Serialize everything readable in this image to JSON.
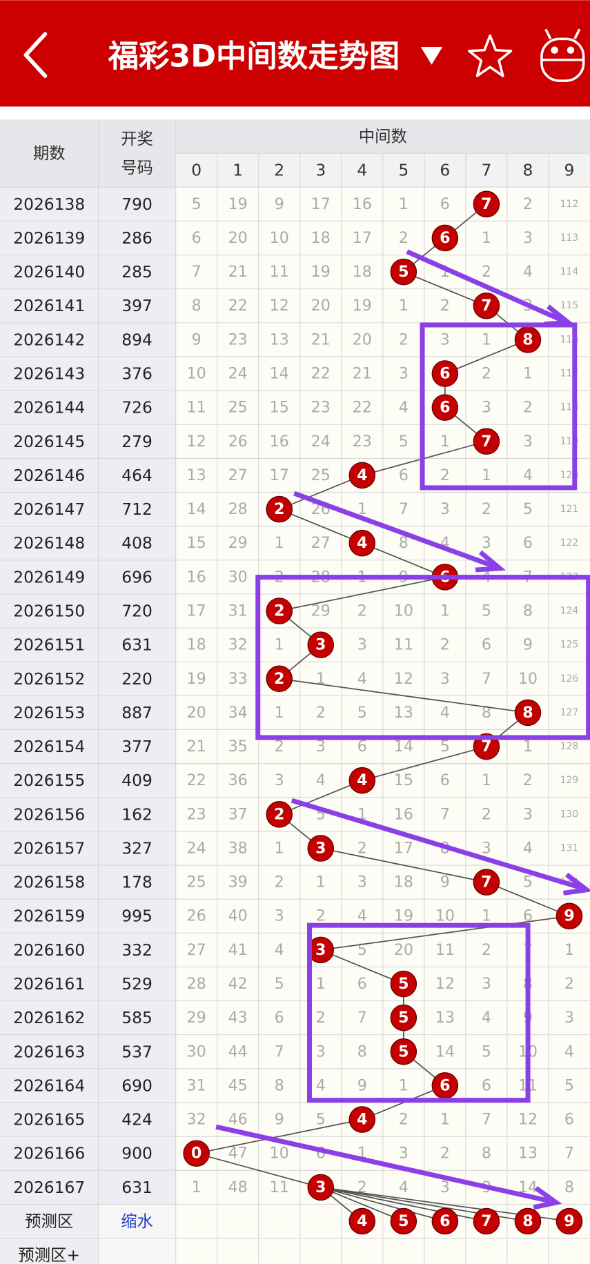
{
  "header": {
    "title": "福彩3D中间数走势图"
  },
  "table": {
    "headers": {
      "period": "期数",
      "number": [
        "开奖",
        "号码"
      ],
      "group": "中间数",
      "digits": [
        0,
        1,
        2,
        3,
        4,
        5,
        6,
        7,
        8,
        9
      ]
    },
    "rows": [
      {
        "period": "2026138",
        "number": "790",
        "cells": [
          5,
          19,
          9,
          17,
          16,
          1,
          6,
          7,
          2,
          112
        ],
        "hit": 7
      },
      {
        "period": "2026139",
        "number": "286",
        "cells": [
          6,
          20,
          10,
          18,
          17,
          2,
          6,
          1,
          3,
          113
        ],
        "hit": 6
      },
      {
        "period": "2026140",
        "number": "285",
        "cells": [
          7,
          21,
          11,
          19,
          18,
          5,
          1,
          2,
          4,
          114
        ],
        "hit": 5
      },
      {
        "period": "2026141",
        "number": "397",
        "cells": [
          8,
          22,
          12,
          20,
          19,
          1,
          2,
          7,
          3,
          115
        ],
        "hit": 7
      },
      {
        "period": "2026142",
        "number": "894",
        "cells": [
          9,
          23,
          13,
          21,
          20,
          2,
          3,
          1,
          8,
          116
        ],
        "hit": 8
      },
      {
        "period": "2026143",
        "number": "376",
        "cells": [
          10,
          24,
          14,
          22,
          21,
          3,
          6,
          2,
          1,
          117
        ],
        "hit": 6
      },
      {
        "period": "2026144",
        "number": "726",
        "cells": [
          11,
          25,
          15,
          23,
          22,
          4,
          6,
          3,
          2,
          118
        ],
        "hit": 6
      },
      {
        "period": "2026145",
        "number": "279",
        "cells": [
          12,
          26,
          16,
          24,
          23,
          5,
          1,
          7,
          3,
          119
        ],
        "hit": 7
      },
      {
        "period": "2026146",
        "number": "464",
        "cells": [
          13,
          27,
          17,
          25,
          4,
          6,
          2,
          1,
          4,
          120
        ],
        "hit": 4
      },
      {
        "period": "2026147",
        "number": "712",
        "cells": [
          14,
          28,
          2,
          26,
          1,
          7,
          3,
          2,
          5,
          121
        ],
        "hit": 2
      },
      {
        "period": "2026148",
        "number": "408",
        "cells": [
          15,
          29,
          1,
          27,
          4,
          8,
          4,
          3,
          6,
          122
        ],
        "hit": 4
      },
      {
        "period": "2026149",
        "number": "696",
        "cells": [
          16,
          30,
          2,
          28,
          1,
          9,
          6,
          4,
          7,
          123
        ],
        "hit": 6
      },
      {
        "period": "2026150",
        "number": "720",
        "cells": [
          17,
          31,
          2,
          29,
          2,
          10,
          1,
          5,
          8,
          124
        ],
        "hit": 2
      },
      {
        "period": "2026151",
        "number": "631",
        "cells": [
          18,
          32,
          1,
          3,
          3,
          11,
          2,
          6,
          9,
          125
        ],
        "hit": 3
      },
      {
        "period": "2026152",
        "number": "220",
        "cells": [
          19,
          33,
          2,
          1,
          4,
          12,
          3,
          7,
          10,
          126
        ],
        "hit": 2
      },
      {
        "period": "2026153",
        "number": "887",
        "cells": [
          20,
          34,
          1,
          2,
          5,
          13,
          4,
          8,
          8,
          127
        ],
        "hit": 8
      },
      {
        "period": "2026154",
        "number": "377",
        "cells": [
          21,
          35,
          2,
          3,
          6,
          14,
          5,
          7,
          1,
          128
        ],
        "hit": 7
      },
      {
        "period": "2026155",
        "number": "409",
        "cells": [
          22,
          36,
          3,
          4,
          4,
          15,
          6,
          1,
          2,
          129
        ],
        "hit": 4
      },
      {
        "period": "2026156",
        "number": "162",
        "cells": [
          23,
          37,
          2,
          5,
          1,
          16,
          7,
          2,
          3,
          130
        ],
        "hit": 2
      },
      {
        "period": "2026157",
        "number": "327",
        "cells": [
          24,
          38,
          1,
          3,
          2,
          17,
          8,
          3,
          4,
          131
        ],
        "hit": 3
      },
      {
        "period": "2026158",
        "number": "178",
        "cells": [
          25,
          39,
          2,
          1,
          3,
          18,
          9,
          7,
          5,
          132
        ],
        "hit": 7
      },
      {
        "period": "2026159",
        "number": "995",
        "cells": [
          26,
          40,
          3,
          2,
          4,
          19,
          10,
          1,
          6,
          9
        ],
        "hit": 9
      },
      {
        "period": "2026160",
        "number": "332",
        "cells": [
          27,
          41,
          4,
          3,
          5,
          20,
          11,
          2,
          7,
          1
        ],
        "hit": 3
      },
      {
        "period": "2026161",
        "number": "529",
        "cells": [
          28,
          42,
          5,
          1,
          6,
          5,
          12,
          3,
          8,
          2
        ],
        "hit": 5
      },
      {
        "period": "2026162",
        "number": "585",
        "cells": [
          29,
          43,
          6,
          2,
          7,
          5,
          13,
          4,
          9,
          3
        ],
        "hit": 5
      },
      {
        "period": "2026163",
        "number": "537",
        "cells": [
          30,
          44,
          7,
          3,
          8,
          5,
          14,
          5,
          10,
          4
        ],
        "hit": 5
      },
      {
        "period": "2026164",
        "number": "690",
        "cells": [
          31,
          45,
          8,
          4,
          9,
          1,
          6,
          6,
          11,
          5
        ],
        "hit": 6
      },
      {
        "period": "2026165",
        "number": "424",
        "cells": [
          32,
          46,
          9,
          5,
          4,
          2,
          1,
          7,
          12,
          6
        ],
        "hit": 4
      },
      {
        "period": "2026166",
        "number": "900",
        "cells": [
          0,
          47,
          10,
          6,
          1,
          3,
          2,
          8,
          13,
          7
        ],
        "hit": 0
      },
      {
        "period": "2026167",
        "number": "631",
        "cells": [
          1,
          48,
          11,
          3,
          2,
          4,
          3,
          9,
          14,
          8
        ],
        "hit": 3
      }
    ],
    "predict": {
      "label": "预测区",
      "link": "缩水",
      "values": [
        4,
        5,
        6,
        7,
        8,
        9
      ]
    },
    "predict_plus": {
      "label": "预测区+"
    }
  }
}
